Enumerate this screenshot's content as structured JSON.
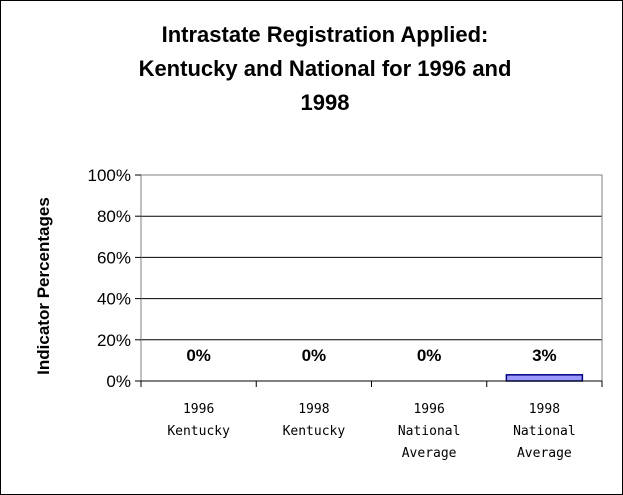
{
  "chart_data": {
    "type": "bar",
    "title_lines": [
      "Intrastate Registration Applied:",
      "Kentucky and National for 1996 and",
      "1998"
    ],
    "ylabel": "Indicator Percentages",
    "xlabel": "",
    "categories": [
      [
        "1996",
        "Kentucky"
      ],
      [
        "1998",
        "Kentucky"
      ],
      [
        "1996",
        "National",
        "Average"
      ],
      [
        "1998",
        "National",
        "Average"
      ]
    ],
    "values": [
      0,
      0,
      0,
      3
    ],
    "data_labels": [
      "0%",
      "0%",
      "0%",
      "3%"
    ],
    "y_ticks": [
      "0%",
      "20%",
      "40%",
      "60%",
      "80%",
      "100%"
    ],
    "ylim": [
      0,
      100
    ],
    "grid": true,
    "legend": "none",
    "bar_color": "#9999ff",
    "bar_edge": "#000080"
  }
}
